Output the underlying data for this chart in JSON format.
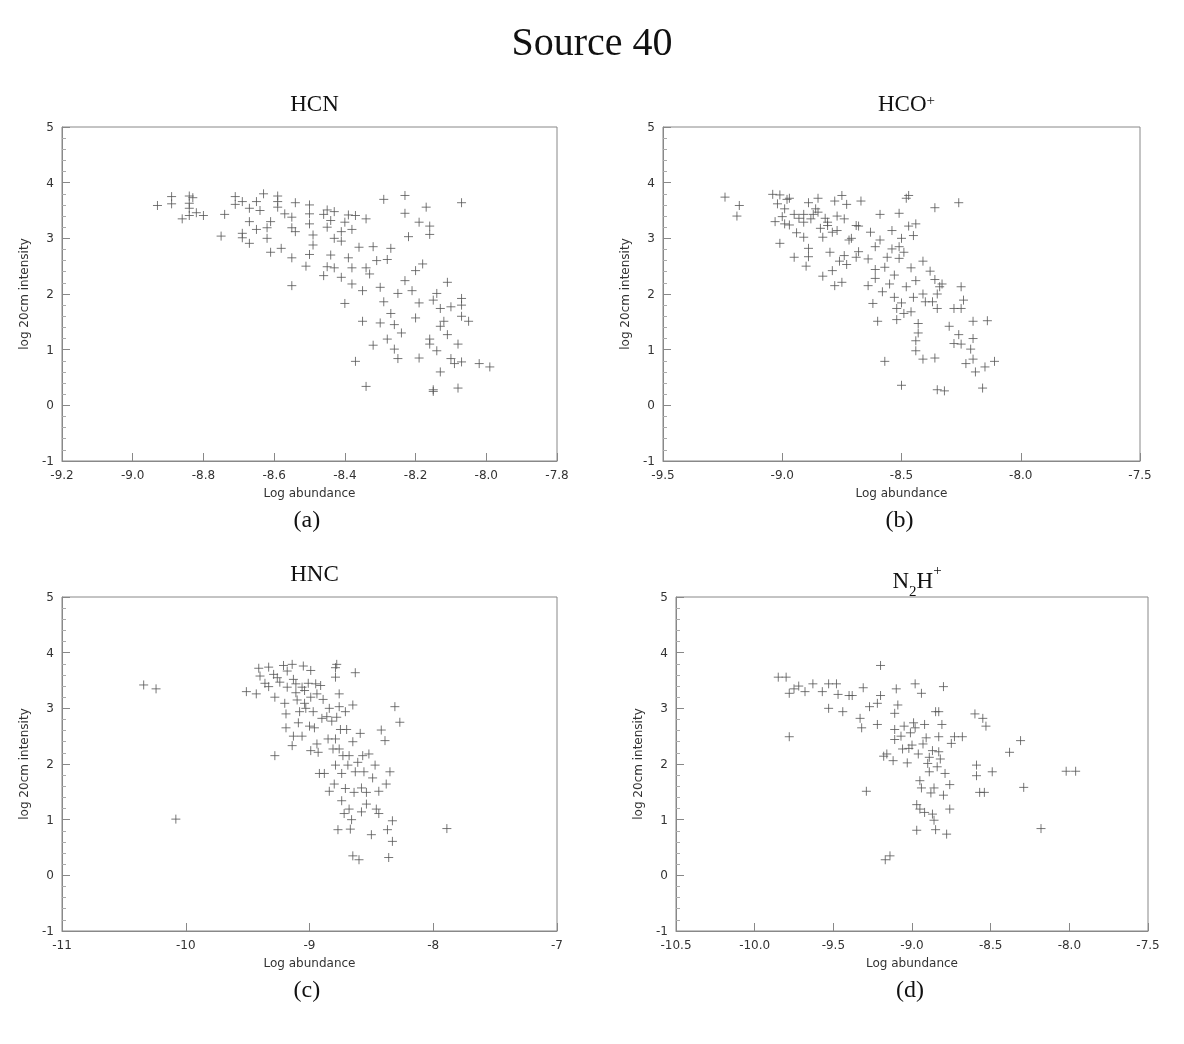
{
  "chart_data": [
    {
      "type": "scatter",
      "title": "HCN",
      "xlabel": "Log abundance",
      "ylabel": "log 20cm intensity",
      "annotations": [
        "Source 40",
        "(a)"
      ],
      "marker": "cross",
      "xlim": [
        -9.2,
        -7.8
      ],
      "xticks": [
        -9.2,
        {
          "value": -9,
          "label": "-9.0"
        },
        -8.8,
        -8.6,
        -8.4,
        -8.2,
        {
          "value": -8,
          "label": "-8.0"
        },
        -7.8
      ],
      "ylim": [
        -1,
        5
      ],
      "yticks": [
        -1,
        0,
        1,
        2,
        3,
        4,
        5
      ],
      "series": [
        {
          "color": "#555555",
          "x": [
            -8.93,
            -8.89,
            -8.89,
            -8.86,
            -8.84,
            -8.84,
            -8.83,
            -8.84,
            -8.84,
            -8.82,
            -8.8,
            -8.75,
            -8.74,
            -8.71,
            -8.71,
            -8.69,
            -8.69,
            -8.69,
            -8.67,
            -8.67,
            -8.67,
            -8.65,
            -8.65,
            -8.64,
            -8.63,
            -8.62,
            -8.62,
            -8.61,
            -8.61,
            -8.59,
            -8.59,
            -8.59,
            -8.58,
            -8.57,
            -8.55,
            -8.55,
            -8.55,
            -8.55,
            -8.54,
            -8.54,
            -8.51,
            -8.5,
            -8.5,
            -8.5,
            -8.49,
            -8.49,
            -8.5,
            -8.46,
            -8.46,
            -8.45,
            -8.45,
            -8.45,
            -8.44,
            -8.43,
            -8.43,
            -8.44,
            -8.43,
            -8.41,
            -8.41,
            -8.41,
            -8.4,
            -8.4,
            -8.39,
            -8.39,
            -8.38,
            -8.38,
            -8.38,
            -8.37,
            -8.37,
            -8.36,
            -8.35,
            -8.35,
            -8.34,
            -8.34,
            -8.34,
            -8.33,
            -8.32,
            -8.32,
            -8.31,
            -8.3,
            -8.3,
            -8.29,
            -8.29,
            -8.28,
            -8.28,
            -8.27,
            -8.27,
            -8.26,
            -8.26,
            -8.25,
            -8.25,
            -8.24,
            -8.23,
            -8.23,
            -8.23,
            -8.22,
            -8.21,
            -8.2,
            -8.2,
            -8.19,
            -8.19,
            -8.19,
            -8.18,
            -8.17,
            -8.16,
            -8.16,
            -8.16,
            -8.16,
            -8.15,
            -8.15,
            -8.15,
            -8.14,
            -8.14,
            -8.13,
            -8.13,
            -8.13,
            -8.12,
            -8.11,
            -8.11,
            -8.1,
            -8.1,
            -8.09,
            -8.08,
            -8.08,
            -8.07,
            -8.07,
            -8.07,
            -8.07,
            -8.07,
            -8.05,
            -8.02,
            -7.99
          ],
          "values": [
            3.59,
            3.75,
            3.62,
            3.35,
            3.63,
            3.76,
            3.73,
            3.41,
            3.54,
            3.46,
            3.41,
            3.04,
            3.43,
            3.75,
            3.61,
            3.66,
            3.09,
            3.01,
            2.91,
            3.54,
            3.3,
            3.16,
            3.66,
            3.5,
            3.8,
            3.0,
            3.19,
            3.3,
            2.75,
            3.66,
            3.76,
            3.56,
            2.82,
            3.44,
            3.38,
            3.19,
            2.65,
            2.15,
            3.64,
            3.12,
            2.5,
            3.26,
            3.6,
            2.71,
            3.06,
            2.88,
            3.44,
            3.43,
            2.33,
            2.49,
            3.51,
            3.2,
            2.7,
            2.47,
            3.48,
            3.32,
            3.0,
            3.12,
            2.95,
            2.3,
            3.29,
            1.83,
            2.65,
            3.42,
            3.16,
            2.47,
            2.18,
            0.79,
            3.41,
            2.84,
            2.06,
            1.51,
            0.34,
            2.47,
            3.35,
            2.36,
            1.08,
            2.85,
            2.6,
            1.48,
            2.12,
            3.7,
            1.86,
            1.19,
            2.62,
            1.65,
            2.82,
            1.01,
            1.45,
            2.01,
            0.84,
            1.3,
            3.77,
            2.24,
            3.45,
            3.03,
            2.06,
            2.42,
            1.57,
            3.29,
            1.84,
            0.85,
            2.54,
            3.56,
            1.19,
            3.22,
            3.07,
            1.1,
            0.28,
            0.25,
            1.89,
            2.01,
            0.98,
            0.6,
            1.42,
            1.74,
            1.51,
            1.27,
            2.21,
            0.84,
            1.77,
            0.75,
            1.1,
            0.31,
            3.64,
            1.92,
            1.8,
            1.6,
            0.78,
            1.51,
            0.75,
            0.69
          ]
        }
      ]
    },
    {
      "type": "scatter",
      "title": "HCO$^{+}$",
      "xlabel": "Log abundance",
      "ylabel": "log 20cm intensity",
      "annotations": [
        "(b)"
      ],
      "marker": "cross",
      "xlim": [
        -9.5,
        -7.5
      ],
      "xticks": [
        -9.5,
        {
          "value": -9,
          "label": "-9.0"
        },
        -8.5,
        {
          "value": -8,
          "label": "-8.0"
        },
        -7.5
      ],
      "ylim": [
        -1,
        5
      ],
      "yticks": [
        -1,
        0,
        1,
        2,
        3,
        4,
        5
      ],
      "series": [
        {
          "color": "#555555",
          "x": [
            -9.24,
            -9.19,
            -9.18,
            -9.04,
            -9.03,
            -9.02,
            -9.01,
            -9.01,
            -9.0,
            -8.99,
            -8.99,
            -8.98,
            -8.97,
            -8.97,
            -8.95,
            -8.95,
            -8.94,
            -8.93,
            -8.91,
            -8.91,
            -8.91,
            -8.9,
            -8.89,
            -8.89,
            -8.89,
            -8.88,
            -8.87,
            -8.86,
            -8.85,
            -8.85,
            -8.84,
            -8.83,
            -8.83,
            -8.82,
            -8.81,
            -8.81,
            -8.8,
            -8.79,
            -8.79,
            -8.78,
            -8.78,
            -8.77,
            -8.77,
            -8.76,
            -8.75,
            -8.75,
            -8.74,
            -8.74,
            -8.73,
            -8.73,
            -8.72,
            -8.71,
            -8.69,
            -8.69,
            -8.68,
            -8.68,
            -8.67,
            -8.64,
            -8.64,
            -8.63,
            -8.62,
            -8.61,
            -8.61,
            -8.61,
            -8.6,
            -8.59,
            -8.59,
            -8.58,
            -8.57,
            -8.57,
            -8.56,
            -8.55,
            -8.54,
            -8.54,
            -8.53,
            -8.53,
            -8.52,
            -8.52,
            -8.51,
            -8.51,
            -8.51,
            -8.5,
            -8.5,
            -8.5,
            -8.49,
            -8.49,
            -8.48,
            -8.48,
            -8.47,
            -8.47,
            -8.46,
            -8.46,
            -8.45,
            -8.45,
            -8.44,
            -8.44,
            -8.44,
            -8.43,
            -8.43,
            -8.44,
            -8.41,
            -8.41,
            -8.41,
            -8.4,
            -8.38,
            -8.37,
            -8.36,
            -8.36,
            -8.36,
            -8.35,
            -8.35,
            -8.35,
            -8.34,
            -8.33,
            -8.32,
            -8.3,
            -8.28,
            -8.28,
            -8.26,
            -8.26,
            -8.25,
            -8.25,
            -8.25,
            -8.24,
            -8.23,
            -8.21,
            -8.2,
            -8.2,
            -8.19,
            -8.2,
            -8.16,
            -8.15,
            -8.14,
            -8.11
          ],
          "values": [
            3.74,
            3.4,
            3.59,
            3.79,
            3.3,
            3.62,
            3.78,
            2.91,
            3.39,
            3.53,
            3.26,
            3.7,
            3.72,
            3.24,
            3.43,
            2.66,
            3.1,
            3.36,
            3.43,
            3.29,
            3.02,
            2.5,
            2.67,
            2.82,
            3.64,
            3.35,
            3.43,
            3.53,
            3.72,
            3.47,
            3.18,
            3.02,
            2.32,
            3.36,
            3.23,
            3.29,
            2.75,
            2.42,
            3.11,
            2.15,
            3.67,
            3.4,
            3.14,
            2.59,
            2.21,
            3.77,
            2.69,
            3.35,
            2.53,
            3.61,
            2.97,
            3.0,
            3.23,
            2.66,
            3.22,
            2.76,
            3.67,
            2.63,
            2.15,
            3.11,
            1.83,
            2.44,
            2.85,
            2.28,
            1.51,
            2.97,
            3.43,
            2.04,
            0.79,
            2.48,
            2.66,
            2.18,
            3.14,
            2.81,
            2.34,
            1.94,
            1.54,
            1.74,
            3.45,
            2.85,
            2.64,
            0.36,
            1.84,
            3.0,
            1.65,
            2.75,
            3.72,
            2.13,
            3.22,
            3.77,
            2.47,
            1.68,
            1.94,
            3.05,
            3.26,
            2.24,
            1.16,
            1.3,
            1.47,
            0.98,
            0.83,
            2.59,
            2.0,
            1.86,
            2.41,
            1.86,
            3.55,
            0.85,
            2.26,
            1.74,
            0.28,
            2.0,
            2.13,
            2.18,
            0.26,
            1.42,
            1.74,
            1.11,
            3.64,
            1.27,
            2.13,
            1.74,
            1.1,
            1.89,
            0.75,
            1.01,
            1.51,
            1.2,
            0.6,
            0.83,
            0.31,
            0.69,
            1.52,
            0.79
          ]
        }
      ]
    },
    {
      "type": "scatter",
      "title": "HNC",
      "xlabel": "Log abundance",
      "ylabel": "log 20cm intensity",
      "annotations": [
        "(c)"
      ],
      "marker": "cross",
      "xlim": [
        -11,
        -7
      ],
      "xticks": [
        -11,
        -10,
        -9,
        -8,
        -7
      ],
      "ylim": [
        -1,
        5
      ],
      "yticks": [
        -1,
        0,
        1,
        2,
        3,
        4,
        5
      ],
      "series": [
        {
          "color": "#555555",
          "x": [
            -10.34,
            -10.24,
            -10.08,
            -9.51,
            -9.43,
            -9.41,
            -9.4,
            -9.36,
            -9.33,
            -9.33,
            -9.29,
            -9.28,
            -9.28,
            -9.26,
            -9.24,
            -9.21,
            -9.2,
            -9.19,
            -9.19,
            -9.18,
            -9.18,
            -9.14,
            -9.14,
            -9.13,
            -9.13,
            -9.11,
            -9.11,
            -9.1,
            -9.09,
            -9.08,
            -9.06,
            -9.06,
            -9.05,
            -9.04,
            -9.04,
            -9.03,
            -9.01,
            -9.0,
            -8.99,
            -8.99,
            -8.99,
            -8.97,
            -8.96,
            -8.95,
            -8.94,
            -8.94,
            -8.93,
            -8.92,
            -8.91,
            -8.9,
            -8.89,
            -8.88,
            -8.86,
            -8.85,
            -8.84,
            -8.84,
            -8.82,
            -8.81,
            -8.8,
            -8.79,
            -8.79,
            -8.79,
            -8.79,
            -8.78,
            -8.78,
            -8.77,
            -8.76,
            -8.76,
            -8.76,
            -8.75,
            -8.74,
            -8.74,
            -8.73,
            -8.72,
            -8.71,
            -8.71,
            -8.7,
            -8.69,
            -8.68,
            -8.68,
            -8.67,
            -8.66,
            -8.65,
            -8.65,
            -8.65,
            -8.64,
            -8.63,
            -8.63,
            -8.61,
            -8.6,
            -8.59,
            -8.58,
            -8.58,
            -8.57,
            -8.56,
            -8.54,
            -8.54,
            -8.52,
            -8.5,
            -8.49,
            -8.47,
            -8.46,
            -8.44,
            -8.44,
            -8.42,
            -8.39,
            -8.38,
            -8.37,
            -8.36,
            -8.35,
            -8.33,
            -8.33,
            -8.31,
            -8.27,
            -7.89
          ],
          "values": [
            3.42,
            3.35,
            1.01,
            3.3,
            3.26,
            3.72,
            3.58,
            3.45,
            3.74,
            3.39,
            3.61,
            2.15,
            3.2,
            3.55,
            3.47,
            3.77,
            3.09,
            2.65,
            2.9,
            3.38,
            3.67,
            3.79,
            2.33,
            2.5,
            3.52,
            3.44,
            3.28,
            3.15,
            2.74,
            2.94,
            2.5,
            3.38,
            3.76,
            3.09,
            3.32,
            3.0,
            3.45,
            2.68,
            3.68,
            2.24,
            3.2,
            2.94,
            2.65,
            3.44,
            3.26,
            2.36,
            2.21,
            1.83,
            3.41,
            2.82,
            3.16,
            1.83,
            2.85,
            2.45,
            3.0,
            1.51,
            2.77,
            2.27,
            1.64,
            3.56,
            3.73,
            2.45,
            1.98,
            3.79,
            2.84,
            0.82,
            3.26,
            2.27,
            3.03,
            2.62,
            1.83,
            1.34,
            2.15,
            1.11,
            1.56,
            2.94,
            2.62,
            1.98,
            2.15,
            1.19,
            0.83,
            1.0,
            3.06,
            0.35,
            2.4,
            1.49,
            1.86,
            3.64,
            2.03,
            0.28,
            2.55,
            1.57,
            1.14,
            2.15,
            1.86,
            1.49,
            1.28,
            2.18,
            0.73,
            1.75,
            1.98,
            1.19,
            1.51,
            1.11,
            2.61,
            2.42,
            1.64,
            0.82,
            0.32,
            1.86,
            0.98,
            0.61,
            3.03,
            2.75,
            0.84
          ]
        }
      ]
    },
    {
      "type": "scatter",
      "title": "N$_{2}$H$^{+}$",
      "xlabel": "Log abundance",
      "ylabel": "log 20cm intensity",
      "annotations": [
        "(d)"
      ],
      "marker": "cross",
      "xlim": [
        -10.5,
        -7.5
      ],
      "xticks": [
        -10.5,
        {
          "value": -10,
          "label": "-10.0"
        },
        -9.5,
        {
          "value": -9,
          "label": "-9.0"
        },
        -8.5,
        {
          "value": -8,
          "label": "-8.0"
        },
        -7.5
      ],
      "ylim": [
        -1,
        5
      ],
      "yticks": [
        -1,
        0,
        1,
        2,
        3,
        4,
        5
      ],
      "series": [
        {
          "color": "#555555",
          "x": [
            -9.85,
            -9.8,
            -9.78,
            -9.78,
            -9.75,
            -9.72,
            -9.68,
            -9.63,
            -9.57,
            -9.53,
            -9.53,
            -9.48,
            -9.47,
            -9.44,
            -9.4,
            -9.38,
            -9.33,
            -9.32,
            -9.31,
            -9.29,
            -9.27,
            -9.22,
            -9.22,
            -9.2,
            -9.2,
            -9.18,
            -9.17,
            -9.16,
            -9.14,
            -9.12,
            -9.11,
            -9.11,
            -9.11,
            -9.1,
            -9.09,
            -9.07,
            -9.06,
            -9.05,
            -9.03,
            -9.02,
            -9.01,
            -9.0,
            -8.99,
            -8.98,
            -8.97,
            -8.98,
            -8.97,
            -8.96,
            -8.95,
            -8.95,
            -8.94,
            -8.94,
            -8.93,
            -8.92,
            -8.92,
            -8.91,
            -8.9,
            -8.89,
            -8.89,
            -8.88,
            -8.87,
            -8.87,
            -8.86,
            -8.86,
            -8.85,
            -8.85,
            -8.84,
            -8.83,
            -8.83,
            -8.83,
            -8.82,
            -8.81,
            -8.8,
            -8.8,
            -8.79,
            -8.78,
            -8.76,
            -8.76,
            -8.75,
            -8.73,
            -8.68,
            -8.6,
            -8.59,
            -8.59,
            -8.57,
            -8.55,
            -8.54,
            -8.53,
            -8.49,
            -8.38,
            -8.31,
            -8.29,
            -8.18,
            -8.02,
            -7.96
          ],
          "values": [
            3.56,
            3.56,
            3.27,
            2.49,
            3.35,
            3.4,
            3.3,
            3.44,
            3.3,
            3.0,
            3.44,
            3.44,
            3.25,
            2.94,
            3.23,
            3.23,
            2.82,
            2.65,
            3.37,
            1.51,
            3.03,
            3.09,
            2.71,
            3.77,
            3.23,
            2.14,
            0.28,
            2.18,
            0.35,
            2.06,
            2.91,
            2.62,
            2.44,
            3.35,
            3.06,
            2.5,
            2.27,
            2.68,
            2.02,
            2.28,
            2.56,
            2.34,
            2.74,
            3.44,
            0.81,
            2.65,
            1.27,
            2.18,
            1.19,
            1.7,
            1.57,
            3.27,
            2.36,
            2.71,
            1.13,
            2.47,
            2.01,
            2.12,
            1.86,
            1.48,
            1.1,
            2.24,
            1.57,
            0.99,
            2.94,
            0.82,
            1.95,
            2.49,
            2.94,
            2.22,
            2.09,
            2.71,
            3.39,
            1.44,
            1.83,
            0.74,
            1.63,
            1.19,
            2.37,
            2.49,
            2.49,
            2.9,
            1.79,
            1.98,
            1.49,
            2.82,
            1.49,
            2.68,
            1.86,
            2.21,
            2.42,
            1.58,
            0.84,
            1.87,
            1.87
          ]
        }
      ]
    }
  ]
}
